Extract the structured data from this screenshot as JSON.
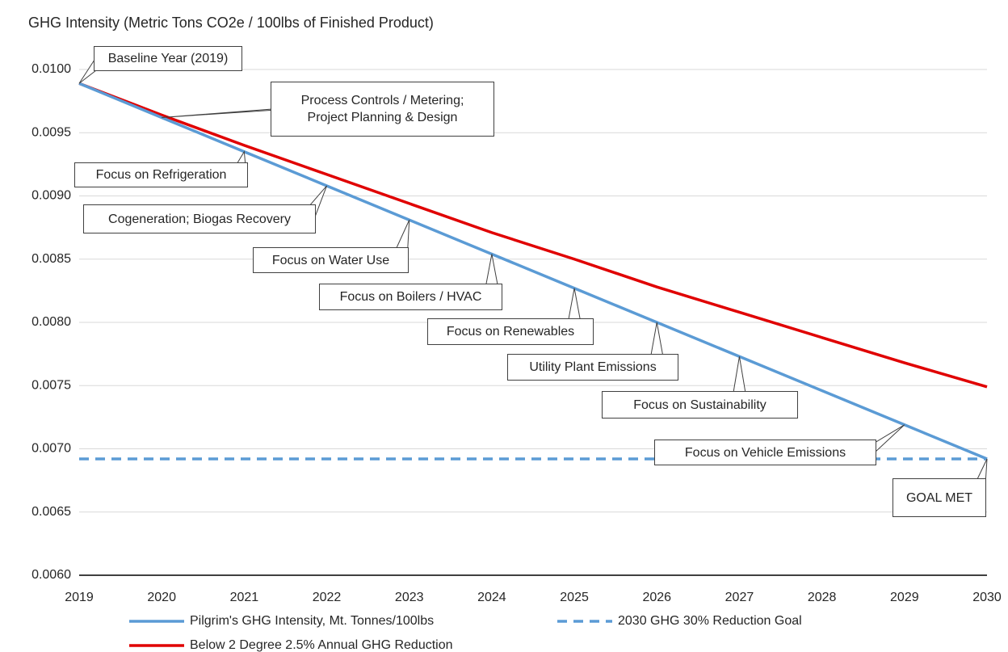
{
  "chart_data": {
    "type": "line",
    "title": "GHG Intensity (Metric Tons CO2e / 100lbs of Finished Product)",
    "x": [
      2019,
      2020,
      2021,
      2022,
      2023,
      2024,
      2025,
      2026,
      2027,
      2028,
      2029,
      2030
    ],
    "xlim": [
      2019,
      2030
    ],
    "xticks": [
      2019,
      2020,
      2021,
      2022,
      2023,
      2024,
      2025,
      2026,
      2027,
      2028,
      2029,
      2030
    ],
    "ylim": [
      0.006,
      0.01
    ],
    "yticks": [
      {
        "value": 0.006,
        "label": "0.0060"
      },
      {
        "value": 0.0065,
        "label": "0.0065"
      },
      {
        "value": 0.007,
        "label": "0.0070"
      },
      {
        "value": 0.0075,
        "label": "0.0075"
      },
      {
        "value": 0.008,
        "label": "0.0080"
      },
      {
        "value": 0.0085,
        "label": "0.0085"
      },
      {
        "value": 0.009,
        "label": "0.0090"
      },
      {
        "value": 0.0095,
        "label": "0.0095"
      },
      {
        "value": 0.01,
        "label": "0.0100"
      }
    ],
    "grid": true,
    "legend": "bottom",
    "series": [
      {
        "name": "Pilgrim's GHG Intensity, Mt. Tonnes/100lbs",
        "color": "#5b9bd5",
        "dashed": false,
        "values": [
          0.00989,
          0.00962,
          0.00935,
          0.00908,
          0.00881,
          0.00854,
          0.00827,
          0.008,
          0.00773,
          0.00746,
          0.00719,
          0.00692
        ]
      },
      {
        "name": "2030 GHG 30% Reduction Goal",
        "color": "#5b9bd5",
        "dashed": true,
        "values": [
          0.00692,
          0.00692,
          0.00692,
          0.00692,
          0.00692,
          0.00692,
          0.00692,
          0.00692,
          0.00692,
          0.00692,
          0.00692,
          0.00692
        ]
      },
      {
        "name": "Below 2 Degree 2.5% Annual GHG Reduction",
        "color": "#e00000",
        "dashed": false,
        "values": [
          0.00989,
          0.00964,
          0.0094,
          0.00917,
          0.00894,
          0.00871,
          0.0085,
          0.00828,
          0.00808,
          0.00788,
          0.00768,
          0.00749
        ]
      }
    ],
    "annotations": [
      "Baseline Year (2019)",
      "Process Controls / Metering; Project Planning & Design",
      "Focus on Refrigeration",
      "Cogeneration; Biogas Recovery",
      "Focus on Water Use",
      "Focus on Boilers / HVAC",
      "Focus on Renewables",
      "Utility Plant Emissions",
      "Focus on Sustainability",
      "Focus on Vehicle Emissions",
      "GOAL MET"
    ]
  }
}
